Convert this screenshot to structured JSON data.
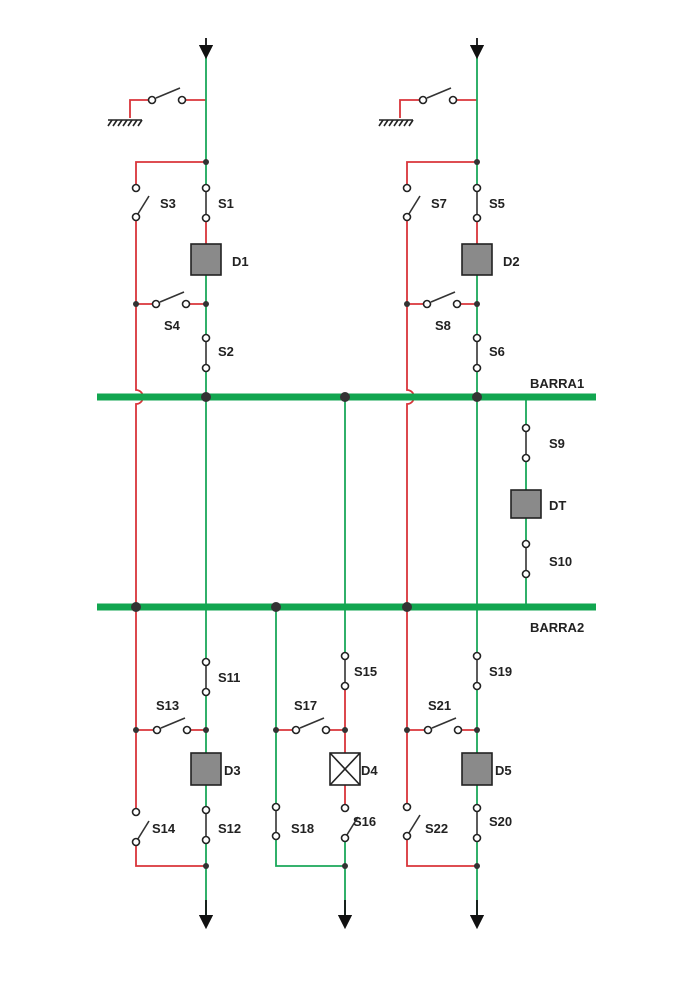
{
  "colors": {
    "energized": "#1aa75a",
    "bus": "#12a650",
    "grounded": "#d9343a",
    "switch": "#333333",
    "breaker_fill": "#8a8a8a",
    "node": "#333333"
  },
  "busbars": {
    "barra1": "BARRA1",
    "barra2": "BARRA2"
  },
  "switches": {
    "s1": "S1",
    "s2": "S2",
    "s3": "S3",
    "s4": "S4",
    "s5": "S5",
    "s6": "S6",
    "s7": "S7",
    "s8": "S8",
    "s9": "S9",
    "s10": "S10",
    "s11": "S11",
    "s12": "S12",
    "s13": "S13",
    "s14": "S14",
    "s15": "S15",
    "s16": "S16",
    "s17": "S17",
    "s18": "S18",
    "s19": "S19",
    "s20": "S20",
    "s21": "S21",
    "s22": "S22"
  },
  "breakers": {
    "d1": "D1",
    "d2": "D2",
    "d3": "D3",
    "d4": "D4",
    "d5": "D5",
    "dt": "DT"
  },
  "icons": [
    "ground-icon",
    "arrow-down-icon",
    "breaker-icon",
    "switch-icon"
  ]
}
